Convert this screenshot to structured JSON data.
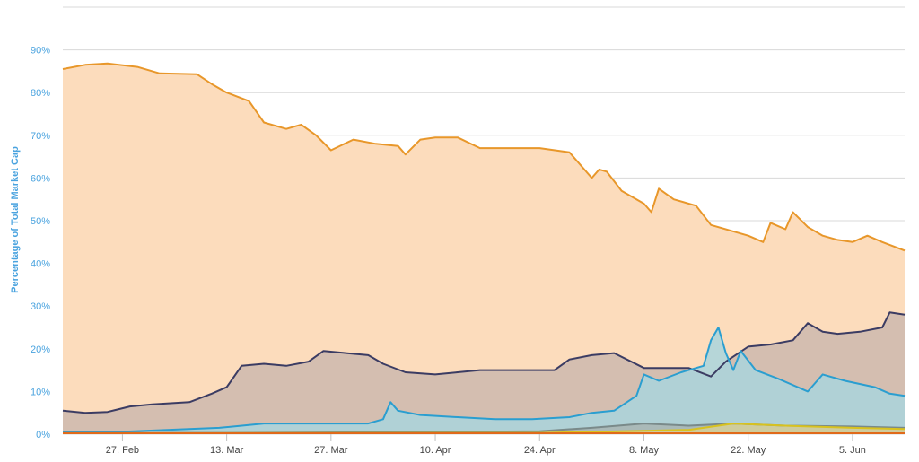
{
  "chart_data": {
    "type": "area",
    "title": "",
    "xlabel": "",
    "ylabel": "Percentage of Total Market Cap",
    "ylim": [
      0,
      100
    ],
    "xlim": [
      "2017-02-19",
      "2017-06-12"
    ],
    "y_tick_labels": [
      "0%",
      "10%",
      "20%",
      "30%",
      "40%",
      "50%",
      "60%",
      "70%",
      "80%",
      "90%"
    ],
    "y_tick_values": [
      0,
      10,
      20,
      30,
      40,
      50,
      60,
      70,
      80,
      90
    ],
    "x_tick_labels": [
      "27. Feb",
      "13. Mar",
      "27. Mar",
      "10. Apr",
      "24. Apr",
      "8. May",
      "22. May",
      "5. Jun"
    ],
    "x_tick_dates": [
      "2017-02-27",
      "2017-03-13",
      "2017-03-27",
      "2017-04-10",
      "2017-04-24",
      "2017-05-08",
      "2017-05-22",
      "2017-06-05"
    ],
    "grid": true,
    "legend": "none",
    "series": [
      {
        "color": "#e8972a",
        "fill": "#fcdcbc",
        "fill_opacity": 1,
        "points": [
          [
            "2017-02-19",
            85.5
          ],
          [
            "2017-02-22",
            86.5
          ],
          [
            "2017-02-25",
            86.8
          ],
          [
            "2017-03-01",
            86.0
          ],
          [
            "2017-03-04",
            84.5
          ],
          [
            "2017-03-09",
            84.3
          ],
          [
            "2017-03-11",
            82.0
          ],
          [
            "2017-03-13",
            80.0
          ],
          [
            "2017-03-16",
            78.0
          ],
          [
            "2017-03-18",
            73.0
          ],
          [
            "2017-03-21",
            71.5
          ],
          [
            "2017-03-23",
            72.5
          ],
          [
            "2017-03-25",
            70.0
          ],
          [
            "2017-03-27",
            66.5
          ],
          [
            "2017-03-30",
            69.0
          ],
          [
            "2017-04-02",
            68.0
          ],
          [
            "2017-04-05",
            67.5
          ],
          [
            "2017-04-06",
            65.5
          ],
          [
            "2017-04-08",
            69.0
          ],
          [
            "2017-04-10",
            69.5
          ],
          [
            "2017-04-13",
            69.5
          ],
          [
            "2017-04-16",
            67.0
          ],
          [
            "2017-04-20",
            67.0
          ],
          [
            "2017-04-24",
            67.0
          ],
          [
            "2017-04-28",
            66.0
          ],
          [
            "2017-05-01",
            60.0
          ],
          [
            "2017-05-02",
            62.0
          ],
          [
            "2017-05-03",
            61.5
          ],
          [
            "2017-05-05",
            57.0
          ],
          [
            "2017-05-08",
            54.0
          ],
          [
            "2017-05-09",
            52.0
          ],
          [
            "2017-05-10",
            57.5
          ],
          [
            "2017-05-12",
            55.0
          ],
          [
            "2017-05-15",
            53.5
          ],
          [
            "2017-05-17",
            49.0
          ],
          [
            "2017-05-20",
            47.5
          ],
          [
            "2017-05-22",
            46.5
          ],
          [
            "2017-05-24",
            45.0
          ],
          [
            "2017-05-25",
            49.5
          ],
          [
            "2017-05-27",
            48.0
          ],
          [
            "2017-05-28",
            52.0
          ],
          [
            "2017-05-30",
            48.5
          ],
          [
            "2017-06-01",
            46.5
          ],
          [
            "2017-06-03",
            45.5
          ],
          [
            "2017-06-05",
            45.0
          ],
          [
            "2017-06-07",
            46.5
          ],
          [
            "2017-06-09",
            45.0
          ],
          [
            "2017-06-12",
            43.0
          ]
        ]
      },
      {
        "color": "#3b3c63",
        "fill": "#cdb9ae",
        "fill_opacity": 0.85,
        "points": [
          [
            "2017-02-19",
            5.5
          ],
          [
            "2017-02-22",
            5.0
          ],
          [
            "2017-02-25",
            5.2
          ],
          [
            "2017-02-28",
            6.5
          ],
          [
            "2017-03-03",
            7.0
          ],
          [
            "2017-03-08",
            7.5
          ],
          [
            "2017-03-11",
            9.5
          ],
          [
            "2017-03-13",
            11.0
          ],
          [
            "2017-03-15",
            16.0
          ],
          [
            "2017-03-18",
            16.5
          ],
          [
            "2017-03-21",
            16.0
          ],
          [
            "2017-03-24",
            17.0
          ],
          [
            "2017-03-26",
            19.5
          ],
          [
            "2017-03-29",
            19.0
          ],
          [
            "2017-04-01",
            18.5
          ],
          [
            "2017-04-03",
            16.5
          ],
          [
            "2017-04-06",
            14.5
          ],
          [
            "2017-04-10",
            14.0
          ],
          [
            "2017-04-13",
            14.5
          ],
          [
            "2017-04-16",
            15.0
          ],
          [
            "2017-04-21",
            15.0
          ],
          [
            "2017-04-26",
            15.0
          ],
          [
            "2017-04-28",
            17.5
          ],
          [
            "2017-05-01",
            18.5
          ],
          [
            "2017-05-04",
            19.0
          ],
          [
            "2017-05-08",
            15.5
          ],
          [
            "2017-05-11",
            15.5
          ],
          [
            "2017-05-14",
            15.5
          ],
          [
            "2017-05-17",
            13.5
          ],
          [
            "2017-05-19",
            17.0
          ],
          [
            "2017-05-22",
            20.5
          ],
          [
            "2017-05-25",
            21.0
          ],
          [
            "2017-05-28",
            22.0
          ],
          [
            "2017-05-30",
            26.0
          ],
          [
            "2017-06-01",
            24.0
          ],
          [
            "2017-06-03",
            23.5
          ],
          [
            "2017-06-06",
            24.0
          ],
          [
            "2017-06-09",
            25.0
          ],
          [
            "2017-06-10",
            28.5
          ],
          [
            "2017-06-12",
            28.0
          ]
        ]
      },
      {
        "color": "#2a9ed0",
        "fill": "#a9d5dd",
        "fill_opacity": 0.85,
        "points": [
          [
            "2017-02-19",
            0.5
          ],
          [
            "2017-02-26",
            0.5
          ],
          [
            "2017-03-05",
            1.0
          ],
          [
            "2017-03-12",
            1.5
          ],
          [
            "2017-03-18",
            2.5
          ],
          [
            "2017-03-25",
            2.5
          ],
          [
            "2017-04-01",
            2.5
          ],
          [
            "2017-04-03",
            3.5
          ],
          [
            "2017-04-04",
            7.5
          ],
          [
            "2017-04-05",
            5.5
          ],
          [
            "2017-04-08",
            4.5
          ],
          [
            "2017-04-13",
            4.0
          ],
          [
            "2017-04-18",
            3.5
          ],
          [
            "2017-04-23",
            3.5
          ],
          [
            "2017-04-28",
            4.0
          ],
          [
            "2017-05-01",
            5.0
          ],
          [
            "2017-05-04",
            5.5
          ],
          [
            "2017-05-07",
            9.0
          ],
          [
            "2017-05-08",
            14.0
          ],
          [
            "2017-05-10",
            12.5
          ],
          [
            "2017-05-13",
            14.5
          ],
          [
            "2017-05-16",
            16.0
          ],
          [
            "2017-05-17",
            22.0
          ],
          [
            "2017-05-18",
            25.0
          ],
          [
            "2017-05-19",
            19.0
          ],
          [
            "2017-05-20",
            15.0
          ],
          [
            "2017-05-21",
            19.5
          ],
          [
            "2017-05-23",
            15.0
          ],
          [
            "2017-05-26",
            13.0
          ],
          [
            "2017-05-30",
            10.0
          ],
          [
            "2017-06-01",
            14.0
          ],
          [
            "2017-06-04",
            12.5
          ],
          [
            "2017-06-08",
            11.0
          ],
          [
            "2017-06-10",
            9.5
          ],
          [
            "2017-06-12",
            9.0
          ]
        ]
      },
      {
        "color": "#7a8a8a",
        "fill": "#a9b3b0",
        "fill_opacity": 0.8,
        "points": [
          [
            "2017-02-19",
            0.3
          ],
          [
            "2017-03-13",
            0.3
          ],
          [
            "2017-04-10",
            0.5
          ],
          [
            "2017-04-24",
            0.7
          ],
          [
            "2017-05-01",
            1.5
          ],
          [
            "2017-05-08",
            2.5
          ],
          [
            "2017-05-14",
            2.0
          ],
          [
            "2017-05-20",
            2.5
          ],
          [
            "2017-05-27",
            2.0
          ],
          [
            "2017-06-05",
            1.8
          ],
          [
            "2017-06-12",
            1.5
          ]
        ]
      },
      {
        "color": "#d8c21f",
        "fill": "#e8d98a",
        "fill_opacity": 0.6,
        "points": [
          [
            "2017-02-19",
            0.2
          ],
          [
            "2017-04-24",
            0.3
          ],
          [
            "2017-05-08",
            0.8
          ],
          [
            "2017-05-14",
            1.0
          ],
          [
            "2017-05-20",
            2.5
          ],
          [
            "2017-05-27",
            2.0
          ],
          [
            "2017-06-05",
            1.5
          ],
          [
            "2017-06-12",
            1.2
          ]
        ]
      },
      {
        "color": "#e06a1a",
        "fill": "#e06a1a",
        "fill_opacity": 0.3,
        "points": [
          [
            "2017-02-19",
            0.2
          ],
          [
            "2017-06-12",
            0.2
          ]
        ]
      }
    ]
  }
}
